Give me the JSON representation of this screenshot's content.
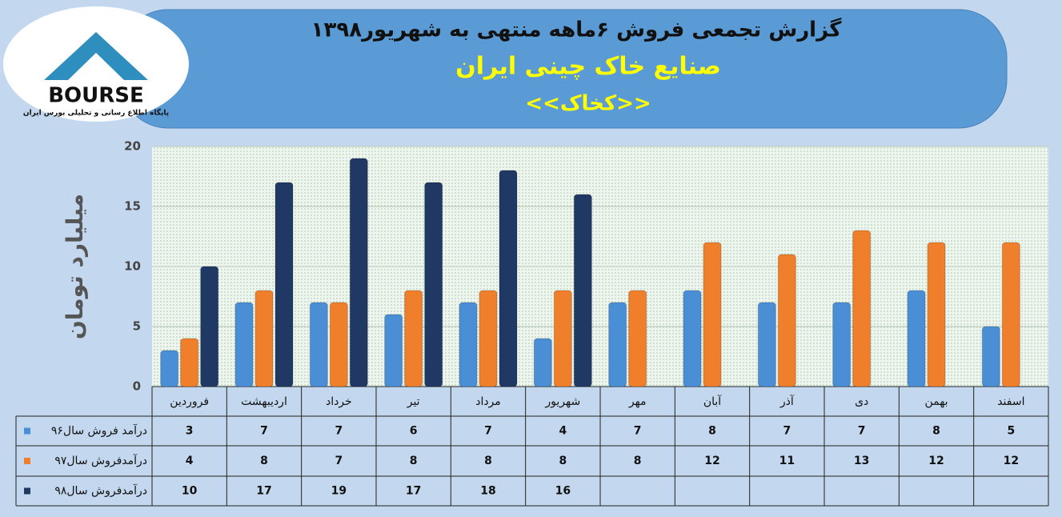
{
  "header": {
    "logo": "BOURSE",
    "logo_caption": "پایگاه اطلاع رسانی و تحلیلی بورس ایران"
  },
  "chart_data": {
    "type": "bar",
    "title": "گزارش تجمعی فروش ۶ماهه منتهی به شهریور۱۳۹۸",
    "subtitle": "صنایع خاک چینی ایران",
    "subtitle2": "<<کخاک>>",
    "y_label": "میلیارد تومان",
    "categories": [
      "فروردین",
      "اردیبهشت",
      "خرداد",
      "تیر",
      "مرداد",
      "شهریور",
      "مهر",
      "آبان",
      "آذر",
      "دی",
      "بهمن",
      "اسفند"
    ],
    "series": [
      {
        "name": "درآمد فروش سال۹۶",
        "color": "#4a8fd6",
        "values": [
          3,
          7,
          7,
          6,
          7,
          4,
          7,
          8,
          7,
          7,
          8,
          5
        ]
      },
      {
        "name": "درآمدفروش سال۹۷",
        "color": "#ef7f2a",
        "values": [
          4,
          8,
          7,
          8,
          8,
          8,
          8,
          12,
          11,
          13,
          12,
          12
        ]
      },
      {
        "name": "درآمدفروش سال۹۸",
        "color": "#1f3864",
        "values": [
          10,
          17,
          19,
          17,
          18,
          16,
          null,
          null,
          null,
          null,
          null,
          null
        ]
      }
    ],
    "ylim": [
      0,
      20
    ],
    "yticks": [
      0,
      5,
      10,
      15,
      20
    ],
    "grid": true
  }
}
